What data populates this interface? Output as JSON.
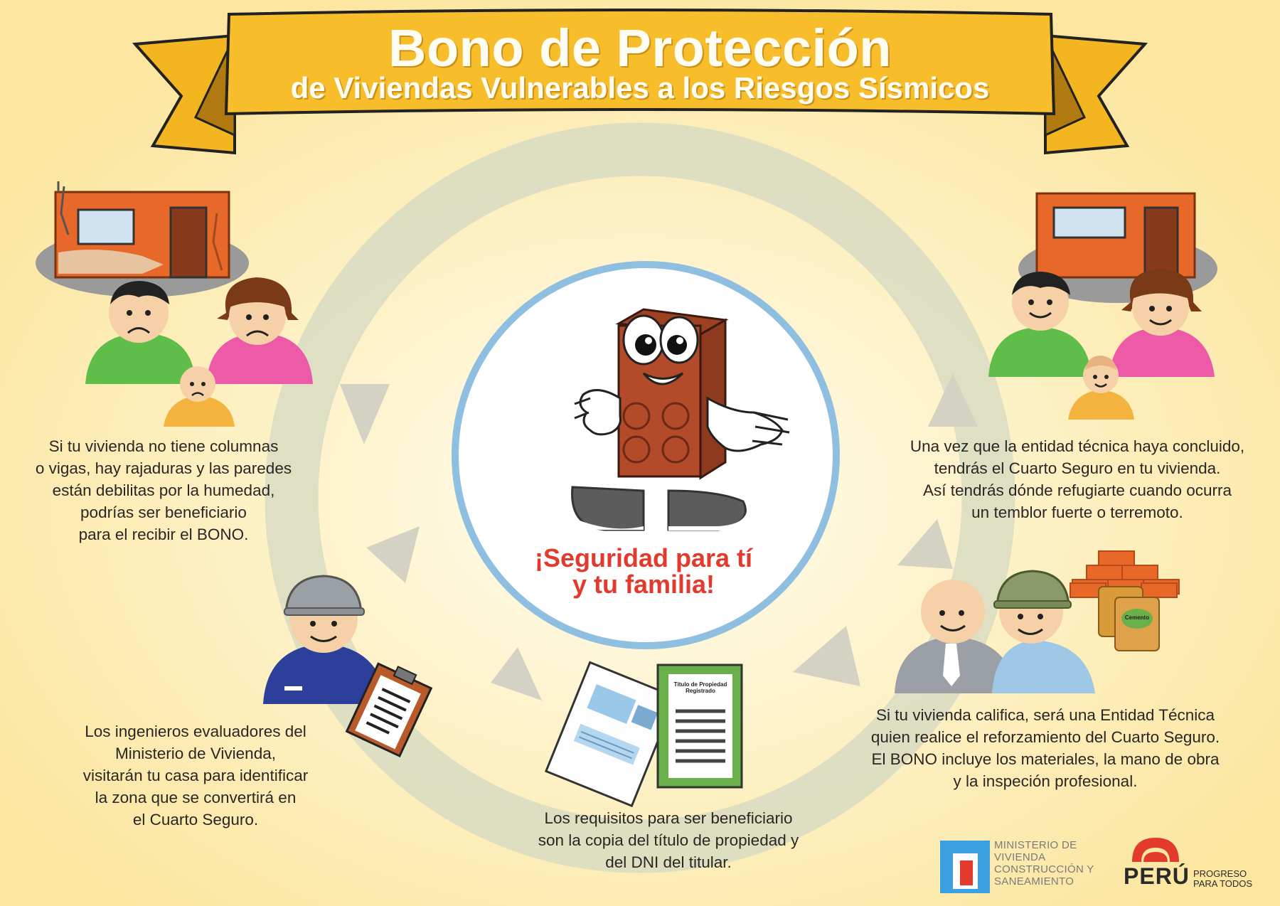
{
  "banner": {
    "title": "Bono de Protección",
    "subtitle": "de Viviendas Vulnerables a los Riesgos Sísmicos"
  },
  "center": {
    "slogan": "¡Seguridad para tí\ny tu familia!"
  },
  "steps": [
    {
      "text": "Si tu vivienda no tiene columnas\no vigas, hay rajaduras y las paredes\nestán debilitas por la humedad,\npodrías ser beneficiario\npara el recibir el BONO."
    },
    {
      "text": "Los ingenieros evaluadores del\nMinisterio de Vivienda,\nvisitarán tu casa para identificar\nla zona que se convertirá en\nel Cuarto Seguro."
    },
    {
      "text": "Los requisitos para ser beneficiario\nson la copia  del título de propiedad y\ndel DNI  del titular."
    },
    {
      "text": "Si tu vivienda califica, será una Entidad Técnica\nquien realice el reforzamiento del Cuarto Seguro.\nEl BONO incluye los materiales, la mano de obra\ny la inspeción profesional."
    },
    {
      "text": "Una vez que la entidad técnica haya  concluido,\ntendrás el Cuarto Seguro en tu vivienda.\nAsí tendrás dónde refugiarte cuando ocurra\nun temblor fuerte o terremoto."
    }
  ],
  "document": {
    "title_line1": "Título de Propiedad",
    "title_line2": "Registrado"
  },
  "materials": {
    "bag_label": "Cemento"
  },
  "logos": {
    "ministry": "MINISTERIO DE\nVIVIENDA\nCONSTRUCCIÓN Y\nSANEAMIENTO",
    "peru_word": "PERÚ",
    "peru_tagline": "PROGRESO\nPARA TODOS"
  },
  "colors": {
    "background": "#fdeaa8",
    "banner": "#f7bd2a",
    "slogan": "#e23b2e",
    "brick": "#b34a2a",
    "house_wall": "#e8682a"
  }
}
